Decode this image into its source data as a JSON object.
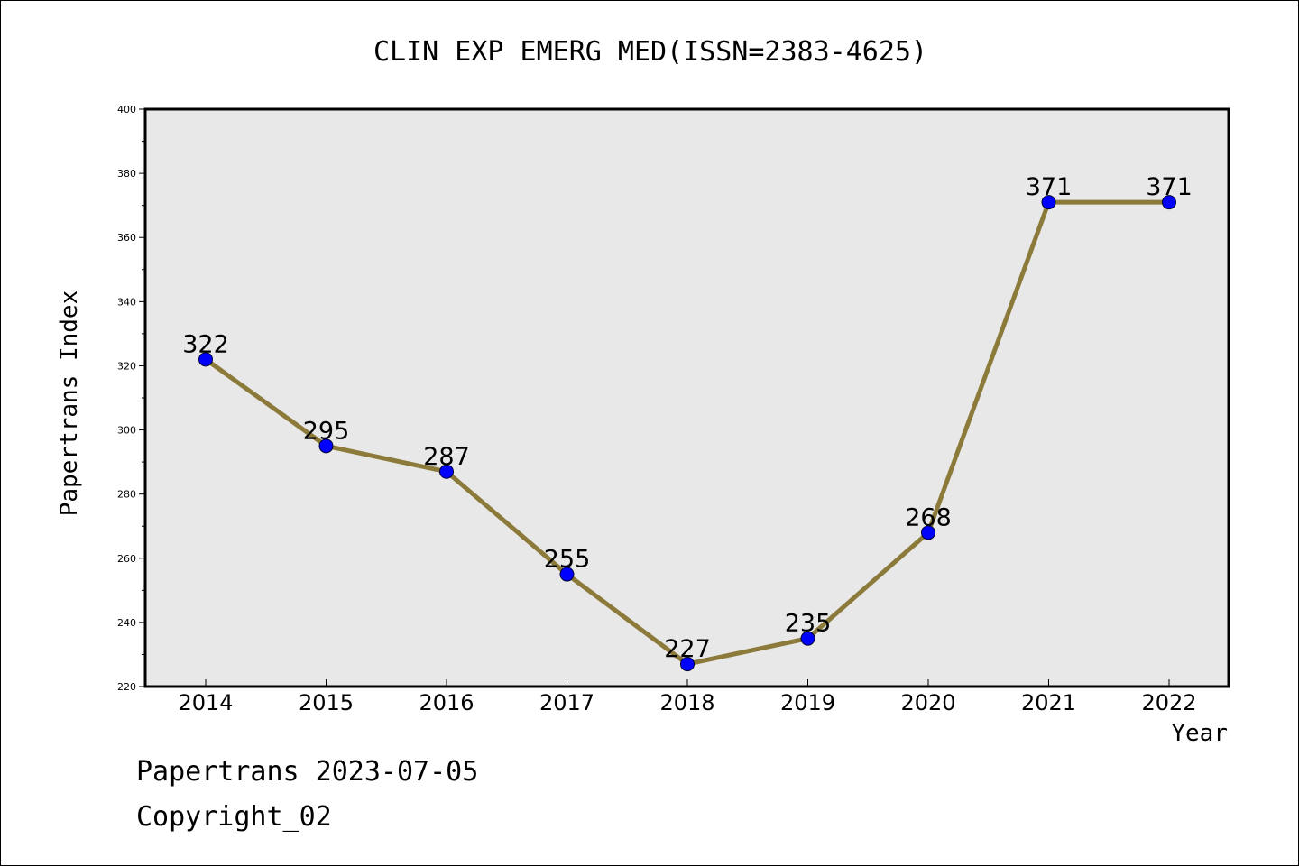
{
  "chart_data": {
    "type": "line",
    "title": "CLIN EXP EMERG MED(ISSN=2383-4625)",
    "xlabel": "Year",
    "ylabel": "Papertrans Index",
    "x": [
      "2014",
      "2015",
      "2016",
      "2017",
      "2018",
      "2019",
      "2020",
      "2021",
      "2022"
    ],
    "series": [
      {
        "values": [
          322,
          295,
          287,
          255,
          227,
          235,
          268,
          371,
          371
        ]
      }
    ],
    "ylim": [
      220,
      400
    ],
    "yticks": [
      220,
      240,
      260,
      280,
      300,
      320,
      340,
      360,
      380,
      400
    ],
    "grid": false,
    "legend": "none",
    "colors": {
      "line": "#8b7a3a",
      "marker": "#0000ff",
      "plot_background": "#e8e8e8"
    }
  },
  "footer": {
    "line1": "Papertrans 2023-07-05",
    "line2": "Copyright_02"
  }
}
